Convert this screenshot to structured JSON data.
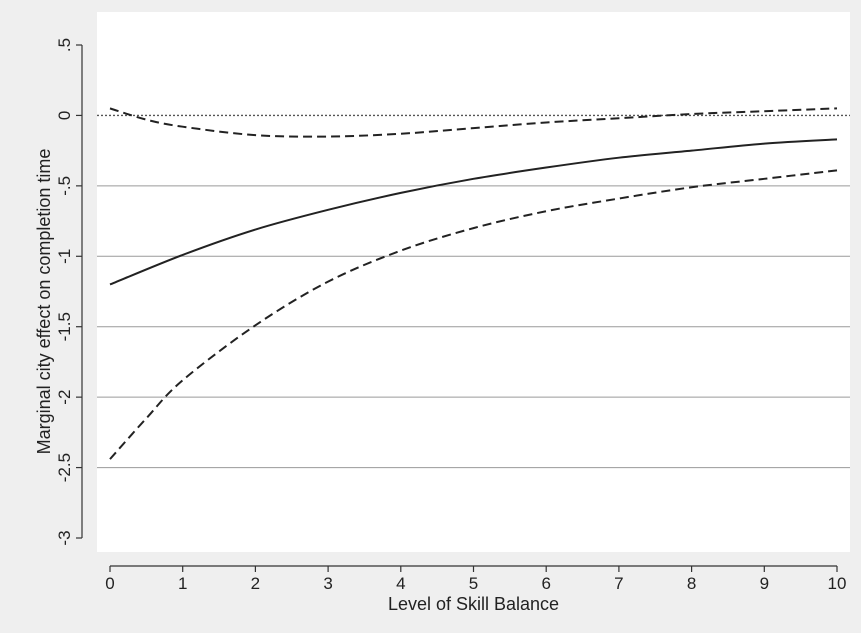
{
  "chart_data": {
    "type": "line",
    "title": "",
    "xlabel": "Level of Skill Balance",
    "ylabel": "Marginal city effect on completion time",
    "xlim": [
      0,
      10
    ],
    "ylim": [
      -3,
      0.5
    ],
    "x_ticks": [
      0,
      1,
      2,
      3,
      4,
      5,
      6,
      7,
      8,
      9,
      10
    ],
    "x_tick_labels": [
      "0",
      "1",
      "2",
      "3",
      "4",
      "5",
      "6",
      "7",
      "8",
      "9",
      "10"
    ],
    "y_ticks": [
      0.5,
      0,
      -0.5,
      -1,
      -1.5,
      -2,
      -2.5,
      -3
    ],
    "y_tick_labels": [
      ".5",
      "0",
      "-.5",
      "-1",
      "-1.5",
      "-2",
      "-2.5",
      "-3"
    ],
    "grid": "horizontal",
    "legend": "none",
    "reference_line_y": 0,
    "series": [
      {
        "style": "solid",
        "color": "#222222",
        "x": [
          0,
          1,
          2,
          3,
          4,
          5,
          6,
          7,
          8,
          9,
          10
        ],
        "y": [
          -1.2,
          -0.99,
          -0.81,
          -0.67,
          -0.55,
          -0.45,
          -0.37,
          -0.3,
          -0.25,
          -0.2,
          -0.17
        ]
      },
      {
        "style": "dashed",
        "color": "#222222",
        "x": [
          0,
          0.5,
          1,
          2,
          3,
          4,
          5,
          6,
          7,
          8,
          9,
          10
        ],
        "y": [
          0.05,
          -0.03,
          -0.08,
          -0.14,
          -0.15,
          -0.13,
          -0.09,
          -0.05,
          -0.02,
          0.01,
          0.03,
          0.05
        ]
      },
      {
        "style": "dashed",
        "color": "#222222",
        "x": [
          0,
          0.5,
          1,
          2,
          3,
          4,
          5,
          6,
          7,
          8,
          9,
          10
        ],
        "y": [
          -2.44,
          -2.15,
          -1.88,
          -1.49,
          -1.18,
          -0.96,
          -0.8,
          -0.68,
          -0.59,
          -0.51,
          -0.45,
          -0.39
        ]
      }
    ]
  }
}
